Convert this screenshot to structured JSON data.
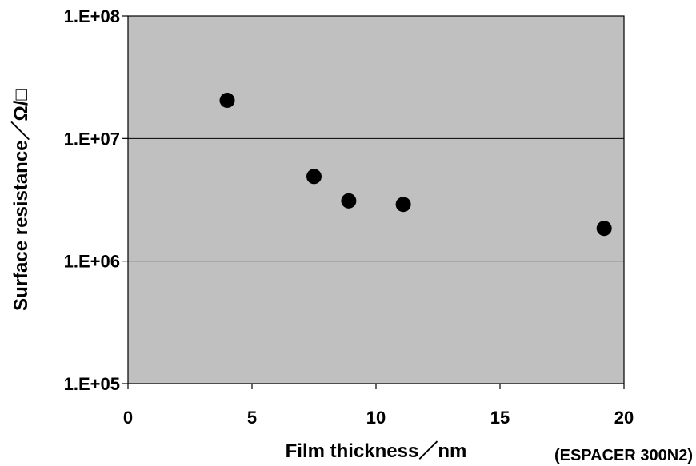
{
  "chart_data": {
    "type": "scatter",
    "xlabel": "Film thickness／nm",
    "ylabel": "Surface resistance／Ω/□",
    "annotation": "(ESPACER 300N2)",
    "xlim": [
      0,
      20
    ],
    "ylim": [
      100000,
      100000000
    ],
    "y_scale": "log",
    "x_ticks": [
      0,
      5,
      10,
      15,
      20
    ],
    "x_tick_labels": [
      "0",
      "5",
      "10",
      "15",
      "20"
    ],
    "y_ticks": [
      100000,
      1000000,
      10000000,
      100000000
    ],
    "y_tick_labels": [
      "1.E+05",
      "1.E+06",
      "1.E+07",
      "1.E+08"
    ],
    "grid": "horizontal",
    "plot_background": "#c0c0c0",
    "marker_color": "#000000",
    "points": [
      {
        "x": 4.0,
        "y": 20500000
      },
      {
        "x": 7.5,
        "y": 4900000
      },
      {
        "x": 8.9,
        "y": 3100000
      },
      {
        "x": 11.1,
        "y": 2900000
      },
      {
        "x": 19.2,
        "y": 1850000
      }
    ]
  }
}
